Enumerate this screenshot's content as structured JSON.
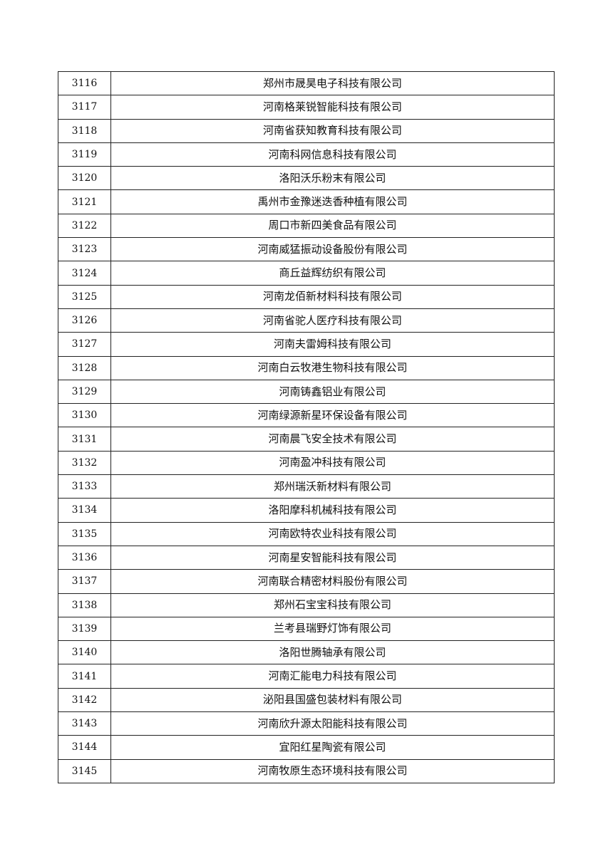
{
  "table": {
    "rows": [
      [
        "3116",
        "郑州市晟昊电子科技有限公司"
      ],
      [
        "3117",
        "河南格莱锐智能科技有限公司"
      ],
      [
        "3118",
        "河南省获知教育科技有限公司"
      ],
      [
        "3119",
        "河南科网信息科技有限公司"
      ],
      [
        "3120",
        "洛阳沃乐粉末有限公司"
      ],
      [
        "3121",
        "禹州市金豫迷迭香种植有限公司"
      ],
      [
        "3122",
        "周口市新四美食品有限公司"
      ],
      [
        "3123",
        "河南威猛振动设备股份有限公司"
      ],
      [
        "3124",
        "商丘益辉纺织有限公司"
      ],
      [
        "3125",
        "河南龙佰新材料科技有限公司"
      ],
      [
        "3126",
        "河南省驼人医疗科技有限公司"
      ],
      [
        "3127",
        "河南夫雷姆科技有限公司"
      ],
      [
        "3128",
        "河南白云牧港生物科技有限公司"
      ],
      [
        "3129",
        "河南铸鑫铝业有限公司"
      ],
      [
        "3130",
        "河南绿源新星环保设备有限公司"
      ],
      [
        "3131",
        "河南晨飞安全技术有限公司"
      ],
      [
        "3132",
        "河南盈冲科技有限公司"
      ],
      [
        "3133",
        "郑州瑞沃新材料有限公司"
      ],
      [
        "3134",
        "洛阳摩科机械科技有限公司"
      ],
      [
        "3135",
        "河南欧特农业科技有限公司"
      ],
      [
        "3136",
        "河南星安智能科技有限公司"
      ],
      [
        "3137",
        "河南联合精密材料股份有限公司"
      ],
      [
        "3138",
        "郑州石宝宝科技有限公司"
      ],
      [
        "3139",
        "兰考县瑞野灯饰有限公司"
      ],
      [
        "3140",
        "洛阳世腾轴承有限公司"
      ],
      [
        "3141",
        "河南汇能电力科技有限公司"
      ],
      [
        "3142",
        "泌阳县国盛包装材料有限公司"
      ],
      [
        "3143",
        "河南欣升源太阳能科技有限公司"
      ],
      [
        "3144",
        "宜阳红星陶瓷有限公司"
      ],
      [
        "3145",
        "河南牧原生态环境科技有限公司"
      ]
    ]
  }
}
